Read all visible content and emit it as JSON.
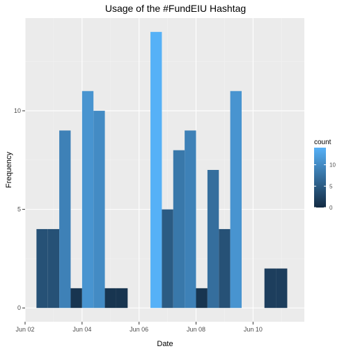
{
  "chart_data": {
    "type": "bar",
    "title": "Usage of the #FundEIU Hashtag",
    "xlabel": "Date",
    "ylabel": "Frequency",
    "x_ticks": [
      "Jun 02",
      "Jun 04",
      "Jun 06",
      "Jun 08",
      "Jun 10"
    ],
    "y_ticks": [
      0,
      5,
      10
    ],
    "xlim_days": [
      2.0,
      11.8
    ],
    "ylim": [
      -0.7,
      14.7
    ],
    "bin_width_days": 0.4,
    "bars": [
      {
        "start": 2.4,
        "count": 4
      },
      {
        "start": 2.8,
        "count": 4
      },
      {
        "start": 3.2,
        "count": 9
      },
      {
        "start": 3.6,
        "count": 1
      },
      {
        "start": 4.0,
        "count": 11
      },
      {
        "start": 4.4,
        "count": 10
      },
      {
        "start": 4.8,
        "count": 1
      },
      {
        "start": 5.2,
        "count": 1
      },
      {
        "start": 5.6,
        "count": 0
      },
      {
        "start": 6.0,
        "count": 0
      },
      {
        "start": 6.4,
        "count": 14
      },
      {
        "start": 6.8,
        "count": 5
      },
      {
        "start": 7.2,
        "count": 8
      },
      {
        "start": 7.6,
        "count": 9
      },
      {
        "start": 8.0,
        "count": 1
      },
      {
        "start": 8.4,
        "count": 7
      },
      {
        "start": 8.8,
        "count": 4
      },
      {
        "start": 9.2,
        "count": 11
      },
      {
        "start": 9.6,
        "count": 0
      },
      {
        "start": 10.0,
        "count": 0
      },
      {
        "start": 10.4,
        "count": 2
      },
      {
        "start": 10.8,
        "count": 2
      }
    ],
    "legend": {
      "title": "count",
      "ticks": [
        0,
        5,
        10
      ],
      "range": [
        0,
        14
      ],
      "low_color": "#132B43",
      "high_color": "#56B1F7",
      "placement": "right"
    },
    "colors": {
      "panel_bg": "#EBEBEB",
      "grid_major": "#FFFFFF",
      "grid_minor": "#F2F2F2"
    },
    "grid": true
  }
}
